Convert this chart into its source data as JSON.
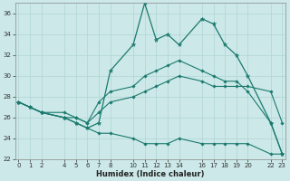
{
  "xlabel": "Humidex (Indice chaleur)",
  "bg_color": "#cce8e8",
  "grid_color": "#b0d4d4",
  "line_color": "#1a7a6e",
  "xlim": [
    -0.3,
    23.3
  ],
  "ylim": [
    22,
    37
  ],
  "yticks": [
    22,
    24,
    26,
    28,
    30,
    32,
    34,
    36
  ],
  "xticks": [
    0,
    1,
    2,
    4,
    5,
    6,
    7,
    8,
    10,
    11,
    12,
    13,
    14,
    16,
    17,
    18,
    19,
    20,
    22,
    23
  ],
  "line_min_x": [
    0,
    1,
    2,
    4,
    5,
    6,
    7,
    8,
    10,
    11,
    12,
    13,
    14,
    16,
    17,
    18,
    19,
    20,
    22,
    23
  ],
  "line_min_y": [
    27.5,
    27.0,
    26.5,
    26.0,
    25.5,
    25.0,
    24.5,
    24.5,
    24.0,
    23.5,
    23.5,
    23.5,
    24.0,
    23.5,
    23.5,
    23.5,
    23.5,
    23.5,
    22.5,
    22.5
  ],
  "line_avg_x": [
    0,
    1,
    2,
    4,
    5,
    6,
    7,
    8,
    10,
    11,
    12,
    13,
    14,
    16,
    17,
    18,
    19,
    20,
    22,
    23
  ],
  "line_avg_y": [
    27.5,
    27.0,
    26.5,
    26.5,
    26.0,
    25.5,
    26.5,
    27.5,
    28.0,
    28.5,
    29.0,
    29.5,
    30.0,
    29.5,
    29.0,
    29.0,
    29.0,
    29.0,
    28.5,
    25.5
  ],
  "line_max2_x": [
    0,
    1,
    2,
    4,
    5,
    6,
    7,
    8,
    10,
    11,
    12,
    13,
    14,
    16,
    17,
    18,
    19,
    20,
    22,
    23
  ],
  "line_max2_y": [
    27.5,
    27.0,
    26.5,
    26.0,
    26.0,
    25.5,
    27.5,
    28.5,
    29.0,
    30.0,
    30.5,
    31.0,
    31.5,
    30.5,
    30.0,
    29.5,
    29.5,
    28.5,
    25.5,
    22.5
  ],
  "line_max_x": [
    0,
    1,
    2,
    4,
    5,
    6,
    7,
    8,
    10,
    11,
    12,
    13,
    14,
    16,
    17,
    18,
    19,
    20,
    22,
    23
  ],
  "line_max_y": [
    27.5,
    27.0,
    26.5,
    26.0,
    25.5,
    25.0,
    25.5,
    30.5,
    33.0,
    37.0,
    33.5,
    34.0,
    33.0,
    35.5,
    35.0,
    33.0,
    32.0,
    30.0,
    25.5,
    22.5
  ],
  "tick_fontsize": 5.0,
  "xlabel_fontsize": 6.0
}
